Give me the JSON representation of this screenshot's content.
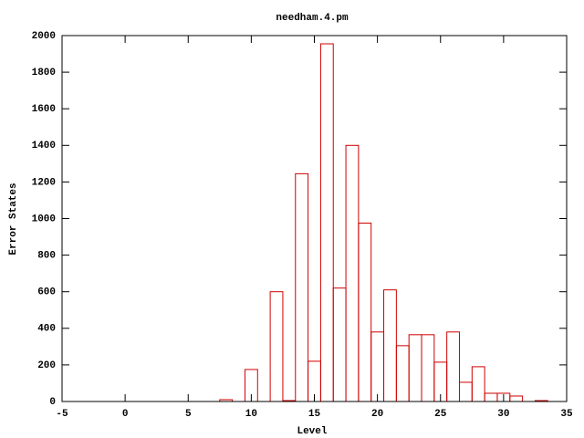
{
  "chart_data": {
    "type": "bar",
    "title": "needham.4.pm",
    "x_label": "Level",
    "y_label": "Error States",
    "x": [
      8,
      10,
      12,
      13,
      14,
      15,
      16,
      17,
      18,
      19,
      20,
      21,
      22,
      23,
      24,
      25,
      26,
      27,
      28,
      29,
      30,
      31,
      33
    ],
    "values": [
      10,
      175,
      600,
      5,
      1245,
      220,
      1955,
      620,
      1400,
      975,
      380,
      610,
      305,
      365,
      365,
      215,
      380,
      105,
      190,
      45,
      45,
      30,
      5
    ],
    "color": "#d00000",
    "xlim": [
      -5,
      35
    ],
    "xticks": [
      -5,
      0,
      5,
      10,
      15,
      20,
      25,
      30,
      35
    ],
    "ylim": [
      0,
      2000
    ],
    "yticks": [
      0,
      200,
      400,
      600,
      800,
      1000,
      1200,
      1400,
      1600,
      1800,
      2000
    ],
    "grid": false
  }
}
